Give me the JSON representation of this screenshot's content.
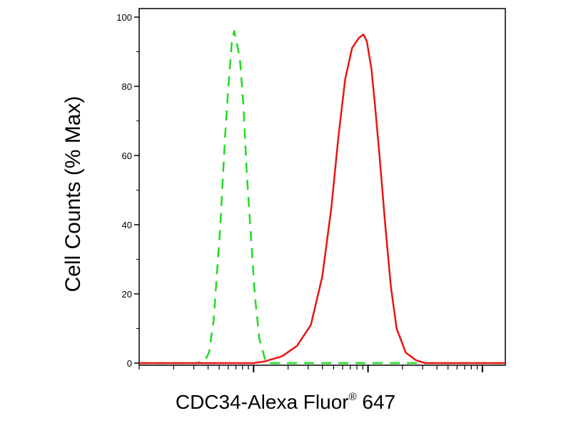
{
  "chart_data": {
    "type": "line",
    "title": "",
    "xlabel": "CDC34-Alexa Fluor",
    "xlabel_mark": "®",
    "xlabel_suffix": " 647",
    "ylabel": "Cell Counts (% Max)",
    "x_scale": "log",
    "ylim": [
      0,
      100
    ],
    "yticks": [
      "0",
      "20",
      "40",
      "60",
      "80",
      "100"
    ],
    "grid": false,
    "series": [
      {
        "color": "#1fdc1f",
        "style": "dashed",
        "x": [
          0.0,
          0.2,
          0.4,
          0.5,
          0.57,
          0.61,
          0.65,
          0.71,
          0.75,
          0.78,
          0.81,
          0.83,
          0.88,
          0.91,
          0.94,
          0.98,
          1.01,
          1.05,
          1.11,
          1.3,
          1.6,
          1.9,
          2.3,
          2.9,
          3.2
        ],
        "y": [
          0,
          0,
          0,
          0,
          0.5,
          3,
          12,
          40,
          65,
          80,
          93,
          96,
          88,
          75,
          55,
          35,
          20,
          7,
          0,
          0,
          0,
          0,
          0,
          0,
          0
        ]
      },
      {
        "color": "#e81414",
        "style": "solid",
        "x": [
          0.0,
          0.5,
          1.0,
          1.1,
          1.25,
          1.38,
          1.5,
          1.6,
          1.68,
          1.74,
          1.8,
          1.86,
          1.92,
          1.96,
          1.99,
          2.03,
          2.06,
          2.1,
          2.15,
          2.2,
          2.25,
          2.33,
          2.42,
          2.5,
          2.62,
          3.0,
          3.2
        ],
        "y": [
          0,
          0,
          0,
          0.5,
          2,
          5,
          11,
          25,
          45,
          65,
          82,
          91,
          94,
          95,
          93,
          85,
          75,
          60,
          40,
          22,
          10,
          3,
          0.8,
          0,
          0,
          0,
          0
        ]
      }
    ]
  }
}
